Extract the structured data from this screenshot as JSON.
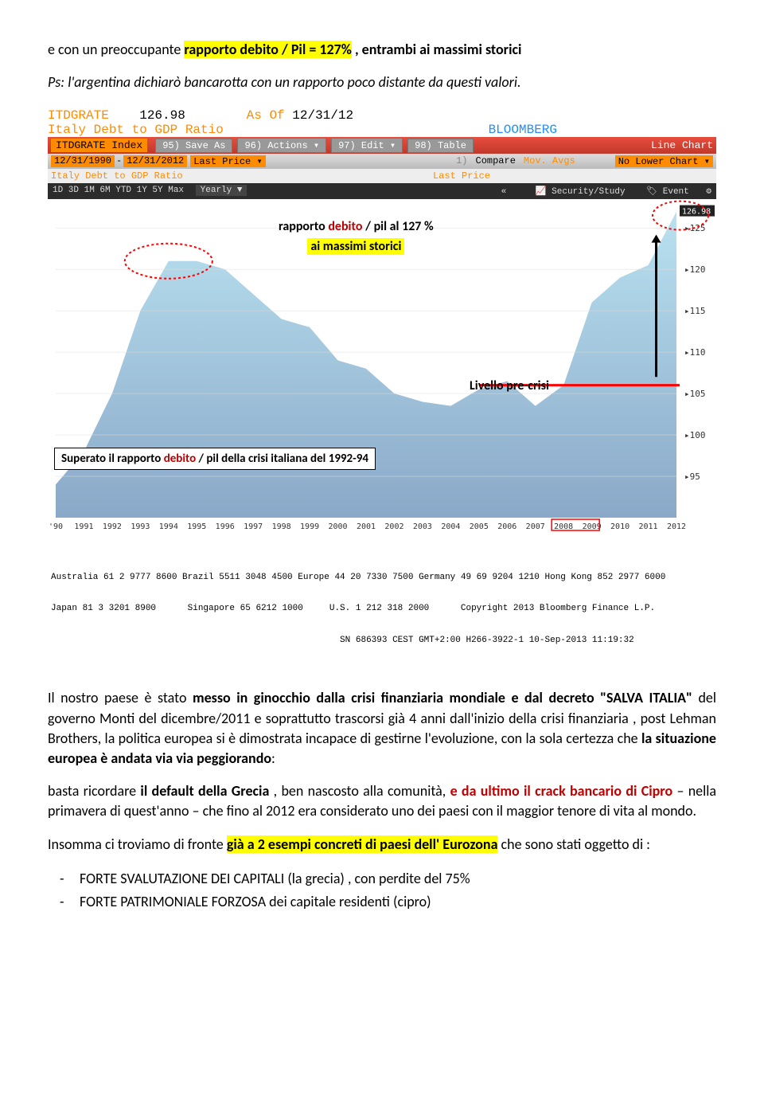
{
  "intro": {
    "line1_prefix": "e con un  preoccupante ",
    "line1_hl": "rapporto debito / Pil = 127%",
    "line1_suffix": " , entrambi ai massimi storici",
    "line2": "Ps: l'argentina dichiarò bancarotta con un rapporto poco distante da questi valori."
  },
  "terminal": {
    "ticker": "ITDGRATE",
    "value": "126.98",
    "asof_label": "As Of",
    "asof_date": "12/31/12",
    "subtitle": "Italy Debt to GDP Ratio",
    "source": "BLOOMBERG",
    "index_label": "ITDGRATE Index",
    "btn95": "95) Save As",
    "btn96": "96) Actions",
    "btn97": "97) Edit",
    "btn98": "98) Table",
    "chart_type": "Line Chart",
    "date_from": "12/31/1990",
    "date_to": "12/31/2012",
    "last_price": "Last Price",
    "compare": "Compare",
    "mov_avgs": "Mov. Avgs",
    "no_lower": "No Lower Chart",
    "subtitle2": "Italy Debt to GDP Ratio",
    "last_price2": "Last Price",
    "ranges": "1D  3D  1M  6M  YTD  1Y  5Y  Max",
    "yearly": "Yearly ▼",
    "laquo": "«",
    "security": "Security/Study",
    "event": "Event",
    "gear": "⚙"
  },
  "chart": {
    "years": [
      "'90",
      "1991",
      "1992",
      "1993",
      "1994",
      "1995",
      "1996",
      "1997",
      "1998",
      "1999",
      "2000",
      "2001",
      "2002",
      "2003",
      "2004",
      "2005",
      "2006",
      "2007",
      "2008",
      "2009",
      "2010",
      "2011",
      "2012"
    ],
    "values": [
      94,
      98,
      105,
      115,
      121,
      121,
      120,
      117,
      114,
      113,
      109,
      108,
      105,
      104,
      103.5,
      105.5,
      106.5,
      103.5,
      106,
      116,
      119,
      120.5,
      126.98
    ],
    "ylim": [
      90,
      128
    ],
    "yticks": [
      95,
      100,
      105,
      110,
      115,
      120,
      125
    ],
    "ytick_labels": [
      "95",
      "100",
      "105",
      "110",
      "115",
      "120",
      "125"
    ],
    "last_label": "126.98",
    "fill_top": "#b9e2f0",
    "fill_bot": "#8aa8c8",
    "bg": "#ffffff",
    "precrisi_level": 106,
    "precrisi_color": "#ff0000"
  },
  "annotations": {
    "rapporto_line1_a": "rapporto ",
    "rapporto_line1_b": "debito",
    "rapporto_line1_c": " / pil al 127 %",
    "rapporto_line2": "ai massimi storici",
    "precrisi": "Livello pre-crisi",
    "box_a": "Superato il rapporto ",
    "box_b": "debito",
    "box_c": " / pil della crisi italiana del 1992-94"
  },
  "footer_terminal": {
    "line1": "Australia 61 2 9777 8600 Brazil 5511 3048 4500 Europe 44 20 7330 7500 Germany 49 69 9204 1210 Hong Kong 852 2977 6000",
    "line2": "Japan 81 3 3201 8900      Singapore 65 6212 1000     U.S. 1 212 318 2000      Copyright 2013 Bloomberg Finance L.P.",
    "line3": "                                                       SN 686393 CEST GMT+2:00 H266-3922-1 10-Sep-2013 11:19:32"
  },
  "body": {
    "p1_a": "Il nostro paese è stato ",
    "p1_b": "messo in ginocchio dalla crisi finanziaria mondiale e dal decreto \"SALVA ITALIA\"",
    "p1_c": " del governo Monti del dicembre/2011 e soprattutto trascorsi già 4 anni dall'inizio della crisi finanziaria , post Lehman Brothers, la politica europea si è dimostrata incapace di gestirne l'evoluzione, con la sola certezza che ",
    "p1_d": "la situazione europea è andata via via peggiorando",
    "p1_e": ":",
    "p2_a": "basta ricordare ",
    "p2_b": "il default della Grecia",
    "p2_c": " , ben nascosto alla comunità, ",
    "p2_d": "e da ultimo il crack bancario di  Cipro",
    "p2_e": "  – nella primavera di quest'anno – che fino al 2012 era considerato uno dei paesi con il maggior tenore di vita al mondo.",
    "p3_a": "Insomma ci troviamo di fronte ",
    "p3_b": "già  a 2 esempi concreti di paesi dell' Eurozona",
    "p3_c": " che sono stati oggetto di :",
    "li1": "FORTE SVALUTAZIONE DEI CAPITALI (la grecia) , con perdite del 75%",
    "li2": "FORTE PATRIMONIALE FORZOSA dei capitale residenti (cipro)"
  }
}
